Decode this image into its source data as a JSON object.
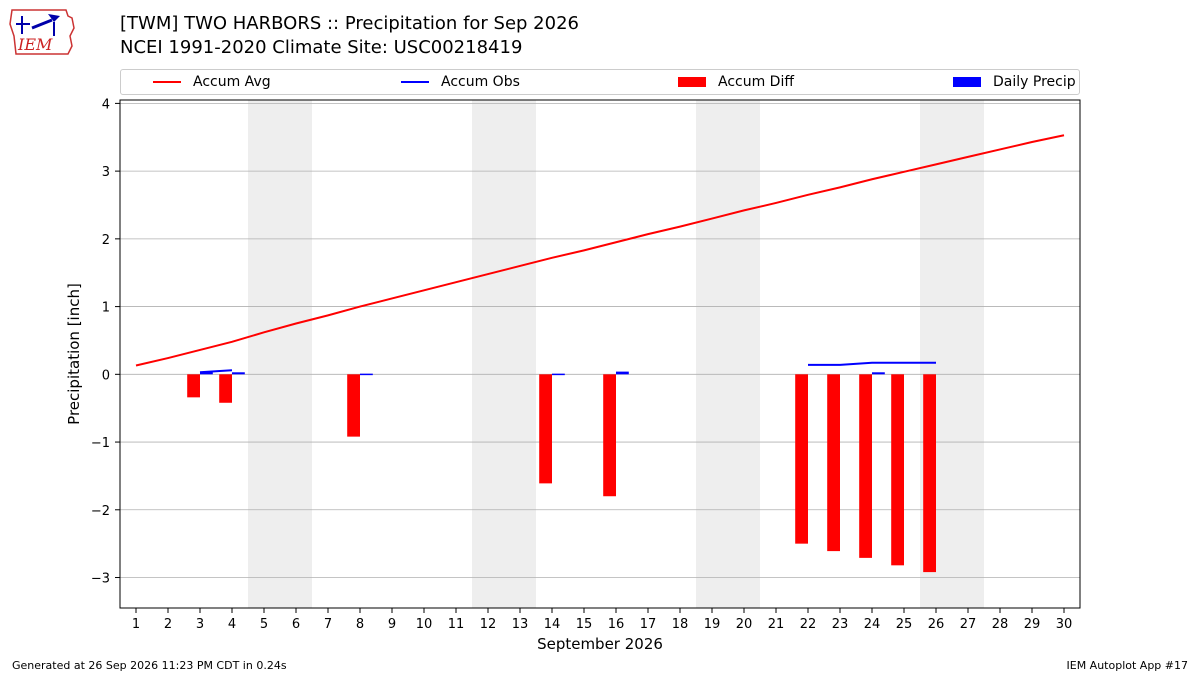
{
  "header": {
    "title_line1": "[TWM] TWO HARBORS :: Precipitation for Sep 2026",
    "title_line2": "NCEI 1991-2020 Climate Site: USC00218419",
    "logo_text": "IEM"
  },
  "footer": {
    "generated": "Generated at 26 Sep 2026 11:23 PM CDT in 0.24s",
    "app": "IEM Autoplot App #17"
  },
  "colors": {
    "accum_avg": "#ff0000",
    "accum_obs": "#0000ff",
    "accum_diff": "#ff0000",
    "daily_precip": "#0000ff",
    "weekend_shade": "#eeeeee",
    "grid": "#b0b0b0"
  },
  "chart_data": {
    "type": "bar",
    "xlabel": "September 2026",
    "ylabel": "Precipitation [inch]",
    "ylim": [
      -3.45,
      4.05
    ],
    "yticks": [
      -3,
      -2,
      -1,
      0,
      1,
      2,
      3,
      4
    ],
    "xlim": [
      0.5,
      30.5
    ],
    "grid": true,
    "legend": [
      {
        "name": "Accum Avg",
        "kind": "line",
        "color": "#ff0000"
      },
      {
        "name": "Accum Obs",
        "kind": "line",
        "color": "#0000ff"
      },
      {
        "name": "Accum Diff",
        "kind": "bar",
        "color": "#ff0000"
      },
      {
        "name": "Daily Precip",
        "kind": "bar",
        "color": "#0000ff"
      }
    ],
    "legend_position": "top",
    "days": [
      1,
      2,
      3,
      4,
      5,
      6,
      7,
      8,
      9,
      10,
      11,
      12,
      13,
      14,
      15,
      16,
      17,
      18,
      19,
      20,
      21,
      22,
      23,
      24,
      25,
      26,
      27,
      28,
      29,
      30
    ],
    "weekend_spans": [
      [
        5,
        6
      ],
      [
        12,
        13
      ],
      [
        19,
        20
      ],
      [
        26,
        27
      ]
    ],
    "accum_avg": [
      0.13,
      0.24,
      0.36,
      0.48,
      0.62,
      0.75,
      0.87,
      1.0,
      1.12,
      1.24,
      1.36,
      1.48,
      1.6,
      1.72,
      1.83,
      1.95,
      2.07,
      2.18,
      2.3,
      2.42,
      2.53,
      2.65,
      2.76,
      2.88,
      2.99,
      3.1,
      3.21,
      3.32,
      3.43,
      3.53
    ],
    "accum_obs": {
      "days": [
        3,
        4,
        22,
        23,
        24,
        25,
        26
      ],
      "values": [
        0.03,
        0.06,
        0.14,
        0.14,
        0.17,
        0.17,
        0.17
      ]
    },
    "accum_diff": {
      "days": [
        3,
        4,
        8,
        14,
        16,
        22,
        23,
        24,
        25,
        26
      ],
      "values": [
        -0.34,
        -0.42,
        -0.92,
        -1.61,
        -1.8,
        -2.5,
        -2.61,
        -2.71,
        -2.82,
        -2.92
      ]
    },
    "daily_precip": {
      "days": [
        3,
        4,
        8,
        14,
        16,
        24
      ],
      "values": [
        0.03,
        0.03,
        0.01,
        0.01,
        0.04,
        0.03
      ]
    }
  }
}
